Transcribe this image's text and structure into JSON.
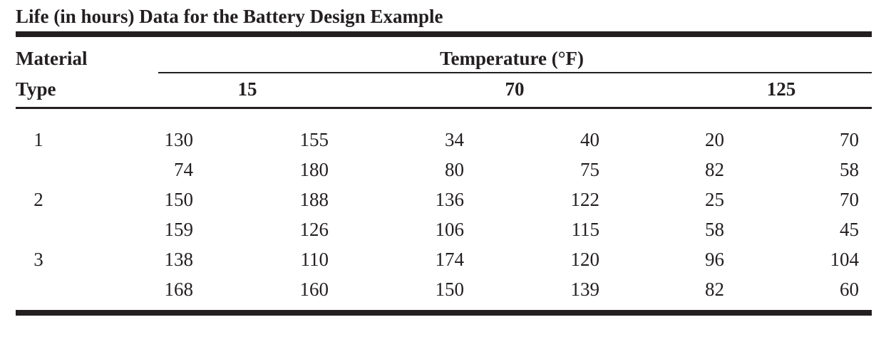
{
  "title": "Life (in hours) Data for the Battery Design Example",
  "header": {
    "row_label_line1": "Material",
    "row_label_line2": "Type",
    "group_label": "Temperature (°F)",
    "temperatures": [
      "15",
      "70",
      "125"
    ]
  },
  "rows": [
    {
      "material": "1",
      "values": [
        "130",
        "155",
        "34",
        "40",
        "20",
        "70"
      ]
    },
    {
      "material": "",
      "values": [
        "74",
        "180",
        "80",
        "75",
        "82",
        "58"
      ]
    },
    {
      "material": "2",
      "values": [
        "150",
        "188",
        "136",
        "122",
        "25",
        "70"
      ]
    },
    {
      "material": "",
      "values": [
        "159",
        "126",
        "106",
        "115",
        "58",
        "45"
      ]
    },
    {
      "material": "3",
      "values": [
        "138",
        "110",
        "174",
        "120",
        "96",
        "104"
      ]
    },
    {
      "material": "",
      "values": [
        "168",
        "160",
        "150",
        "139",
        "82",
        "60"
      ]
    }
  ]
}
